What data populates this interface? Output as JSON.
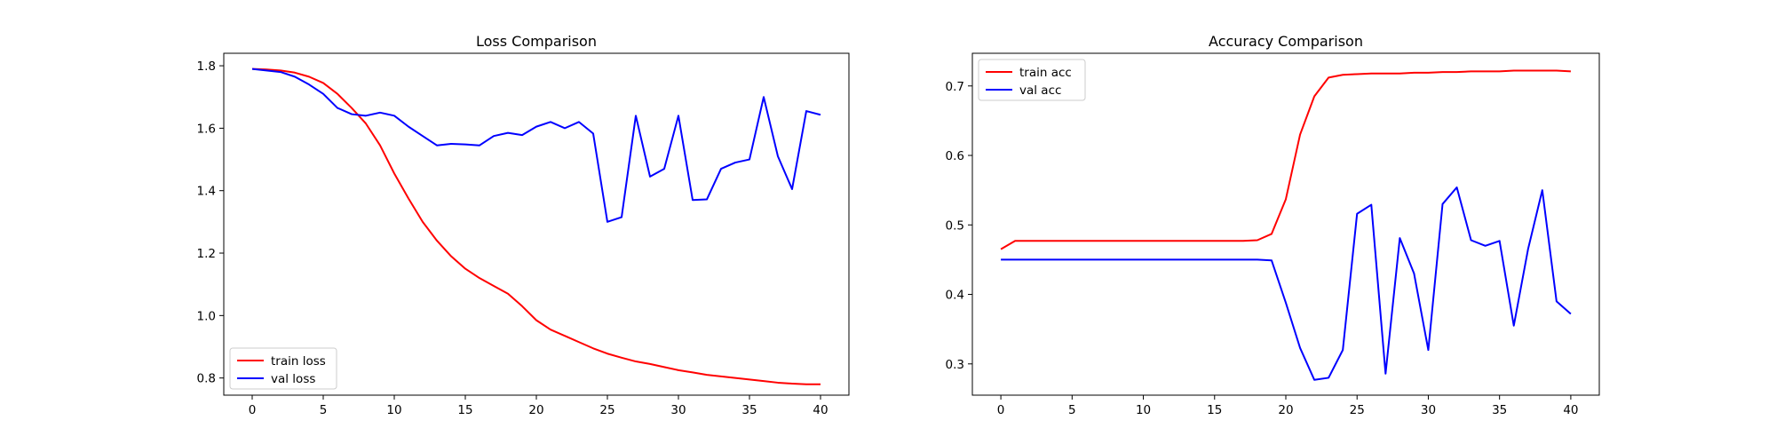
{
  "chart_data": [
    {
      "type": "line",
      "title": "Loss Comparison",
      "xlabel": "",
      "ylabel": "",
      "xlim": [
        -2,
        42
      ],
      "ylim": [
        0.745,
        1.84
      ],
      "xticks": [
        0,
        5,
        10,
        15,
        20,
        25,
        30,
        35,
        40
      ],
      "yticks": [
        0.8,
        1.0,
        1.2,
        1.4,
        1.6,
        1.8
      ],
      "ytick_labels": [
        "0.8",
        "1.0",
        "1.2",
        "1.4",
        "1.6",
        "1.8"
      ],
      "legend_position": "lower-left",
      "grid": false,
      "x": [
        0,
        1,
        2,
        3,
        4,
        5,
        6,
        7,
        8,
        9,
        10,
        11,
        12,
        13,
        14,
        15,
        16,
        17,
        18,
        19,
        20,
        21,
        22,
        23,
        24,
        25,
        26,
        27,
        28,
        29,
        30,
        31,
        32,
        33,
        34,
        35,
        36,
        37,
        38,
        39,
        40
      ],
      "series": [
        {
          "name": "train loss",
          "color": "#ff0000",
          "values": [
            1.79,
            1.788,
            1.785,
            1.778,
            1.765,
            1.745,
            1.71,
            1.665,
            1.615,
            1.545,
            1.455,
            1.375,
            1.3,
            1.24,
            1.19,
            1.15,
            1.12,
            1.095,
            1.07,
            1.03,
            0.985,
            0.955,
            0.935,
            0.915,
            0.895,
            0.878,
            0.865,
            0.853,
            0.845,
            0.835,
            0.825,
            0.818,
            0.81,
            0.805,
            0.8,
            0.795,
            0.79,
            0.785,
            0.782,
            0.78,
            0.78
          ]
        },
        {
          "name": "val loss",
          "color": "#0000ff",
          "values": [
            1.79,
            1.785,
            1.78,
            1.765,
            1.74,
            1.71,
            1.665,
            1.645,
            1.64,
            1.65,
            1.64,
            1.605,
            1.575,
            1.545,
            1.55,
            1.548,
            1.545,
            1.575,
            1.585,
            1.578,
            1.605,
            1.62,
            1.6,
            1.62,
            1.583,
            1.3,
            1.315,
            1.64,
            1.445,
            1.47,
            1.64,
            1.37,
            1.372,
            1.47,
            1.49,
            1.5,
            1.7,
            1.51,
            1.405,
            1.655,
            1.643
          ]
        }
      ]
    },
    {
      "type": "line",
      "title": "Accuracy Comparison",
      "xlabel": "",
      "ylabel": "",
      "xlim": [
        -2,
        42
      ],
      "ylim": [
        0.255,
        0.747
      ],
      "xticks": [
        0,
        5,
        10,
        15,
        20,
        25,
        30,
        35,
        40
      ],
      "yticks": [
        0.3,
        0.4,
        0.5,
        0.6,
        0.7
      ],
      "ytick_labels": [
        "0.3",
        "0.4",
        "0.5",
        "0.6",
        "0.7"
      ],
      "legend_position": "upper-left",
      "grid": false,
      "x": [
        0,
        1,
        2,
        3,
        4,
        5,
        6,
        7,
        8,
        9,
        10,
        11,
        12,
        13,
        14,
        15,
        16,
        17,
        18,
        19,
        20,
        21,
        22,
        23,
        24,
        25,
        26,
        27,
        28,
        29,
        30,
        31,
        32,
        33,
        34,
        35,
        36,
        37,
        38,
        39,
        40
      ],
      "series": [
        {
          "name": "train acc",
          "color": "#ff0000",
          "values": [
            0.465,
            0.477,
            0.477,
            0.477,
            0.477,
            0.477,
            0.477,
            0.477,
            0.477,
            0.477,
            0.477,
            0.477,
            0.477,
            0.477,
            0.477,
            0.477,
            0.477,
            0.477,
            0.478,
            0.487,
            0.537,
            0.63,
            0.685,
            0.712,
            0.716,
            0.717,
            0.718,
            0.718,
            0.718,
            0.719,
            0.719,
            0.72,
            0.72,
            0.721,
            0.721,
            0.721,
            0.722,
            0.722,
            0.722,
            0.722,
            0.721
          ]
        },
        {
          "name": "val acc",
          "color": "#0000ff",
          "values": [
            0.45,
            0.45,
            0.45,
            0.45,
            0.45,
            0.45,
            0.45,
            0.45,
            0.45,
            0.45,
            0.45,
            0.45,
            0.45,
            0.45,
            0.45,
            0.45,
            0.45,
            0.45,
            0.45,
            0.449,
            0.388,
            0.323,
            0.277,
            0.28,
            0.32,
            0.516,
            0.529,
            0.286,
            0.481,
            0.43,
            0.32,
            0.53,
            0.554,
            0.478,
            0.47,
            0.477,
            0.355,
            0.465,
            0.55,
            0.39,
            0.372
          ]
        }
      ]
    }
  ]
}
